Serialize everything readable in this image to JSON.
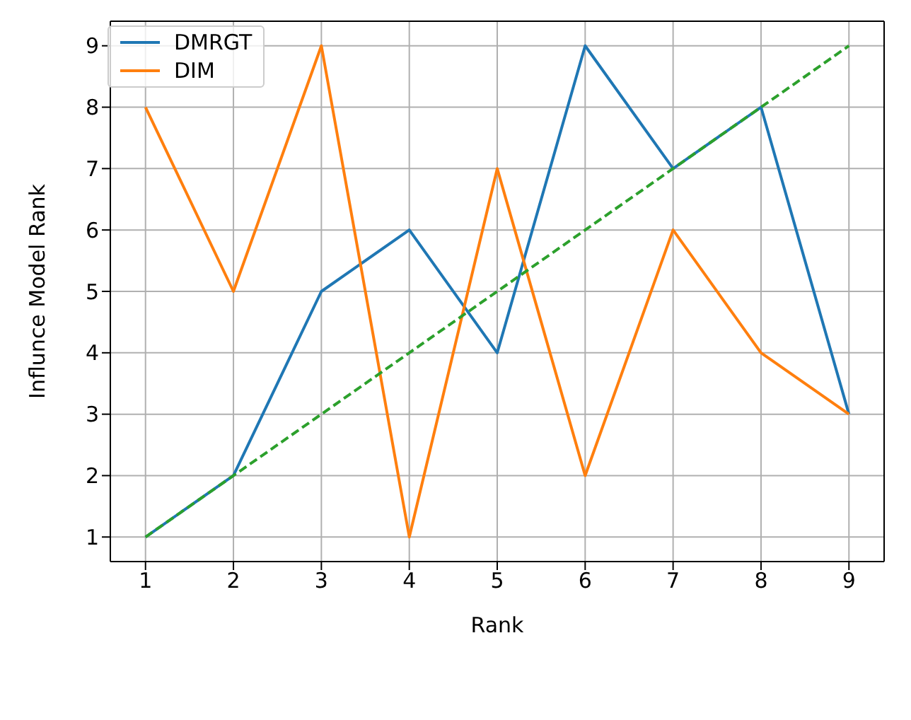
{
  "chart_data": {
    "type": "line",
    "xlabel": "Rank",
    "ylabel": "Influnce Model Rank",
    "x": [
      1,
      2,
      3,
      4,
      5,
      6,
      7,
      8,
      9
    ],
    "series": [
      {
        "name": "DMRGT",
        "color": "#1f77b4",
        "values": [
          1,
          2,
          5,
          6,
          4,
          9,
          7,
          8,
          3
        ]
      },
      {
        "name": "DIM",
        "color": "#ff7f0e",
        "values": [
          8,
          5,
          9,
          1,
          7,
          2,
          6,
          4,
          3
        ]
      },
      {
        "color": "#2ca02c",
        "line_style": "dashed",
        "values": [
          1,
          2,
          3,
          4,
          5,
          6,
          7,
          8,
          9
        ]
      }
    ],
    "xlim": [
      0.6,
      9.4
    ],
    "ylim": [
      0.6,
      9.4
    ],
    "xticks": [
      1,
      2,
      3,
      4,
      5,
      6,
      7,
      8,
      9
    ],
    "yticks": [
      1,
      2,
      3,
      4,
      5,
      6,
      7,
      8,
      9
    ],
    "grid": true,
    "legend": "top left",
    "marker": "none",
    "line_style": "solid"
  }
}
